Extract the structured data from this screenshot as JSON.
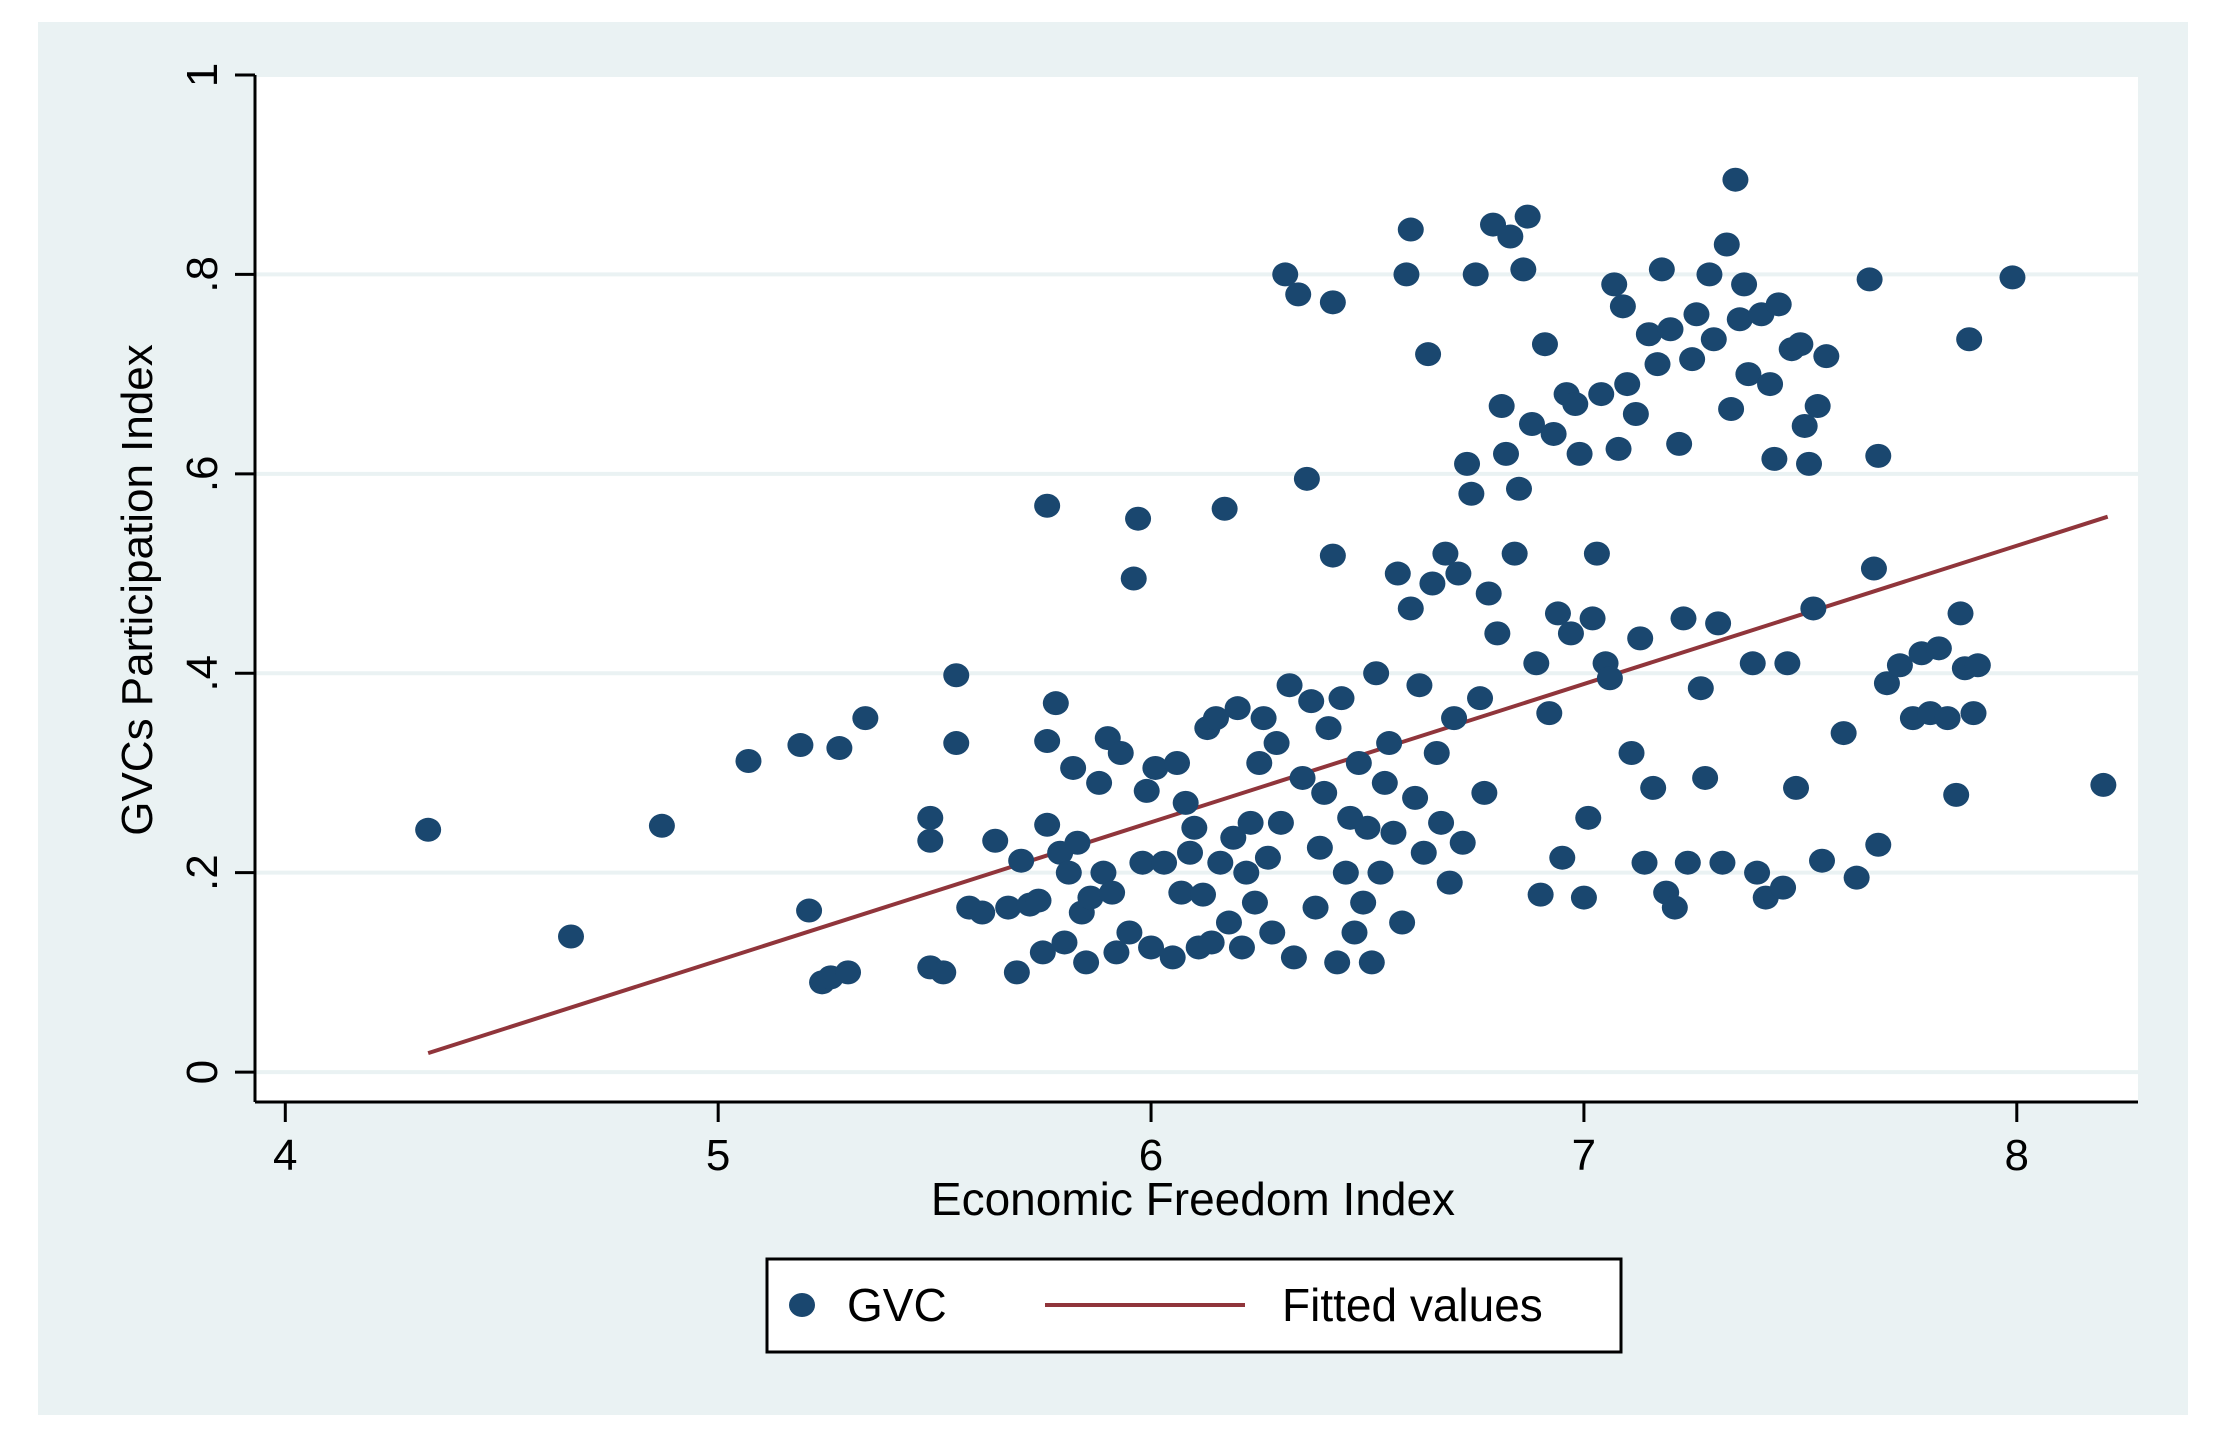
{
  "colors": {
    "outer_background": "#eaf2f3",
    "plot_background": "#ffffff",
    "marker": "#1a476f",
    "fit_line": "#90353b",
    "grid": "#eaf2f3",
    "axis": "#000000"
  },
  "chart_data": {
    "type": "scatter",
    "title": "",
    "xlabel": "Economic Freedom Index",
    "ylabel": "GVCs Participation Index",
    "xlim": [
      3.93,
      8.28
    ],
    "ylim": [
      -0.03,
      1.0
    ],
    "xticks": [
      4,
      5,
      6,
      7,
      8
    ],
    "xtick_labels": [
      "4",
      "5",
      "6",
      "7",
      "8"
    ],
    "yticks": [
      0,
      0.2,
      0.4,
      0.6,
      0.8,
      1
    ],
    "ytick_labels": [
      "0",
      ".2",
      ".4",
      ".6",
      ".8",
      "1"
    ],
    "grid": true,
    "legend": {
      "placement": "bottom",
      "entries": [
        "GVC",
        "Fitted values"
      ]
    },
    "series": [
      {
        "name": "GVC",
        "kind": "scatter",
        "points": [
          [
            4.33,
            0.243
          ],
          [
            4.66,
            0.136
          ],
          [
            4.87,
            0.247
          ],
          [
            5.07,
            0.312
          ],
          [
            5.19,
            0.328
          ],
          [
            5.21,
            0.162
          ],
          [
            5.24,
            0.09
          ],
          [
            5.26,
            0.095
          ],
          [
            5.28,
            0.325
          ],
          [
            5.3,
            0.1
          ],
          [
            5.34,
            0.355
          ],
          [
            5.49,
            0.255
          ],
          [
            5.49,
            0.232
          ],
          [
            5.49,
            0.105
          ],
          [
            5.52,
            0.1
          ],
          [
            5.55,
            0.398
          ],
          [
            5.55,
            0.33
          ],
          [
            5.58,
            0.165
          ],
          [
            5.61,
            0.16
          ],
          [
            5.64,
            0.232
          ],
          [
            5.67,
            0.165
          ],
          [
            5.69,
            0.1
          ],
          [
            5.7,
            0.212
          ],
          [
            5.72,
            0.168
          ],
          [
            5.74,
            0.172
          ],
          [
            5.75,
            0.12
          ],
          [
            5.76,
            0.248
          ],
          [
            5.76,
            0.568
          ],
          [
            5.76,
            0.332
          ],
          [
            5.78,
            0.37
          ],
          [
            5.79,
            0.22
          ],
          [
            5.8,
            0.13
          ],
          [
            5.81,
            0.2
          ],
          [
            5.82,
            0.305
          ],
          [
            5.83,
            0.23
          ],
          [
            5.84,
            0.16
          ],
          [
            5.85,
            0.11
          ],
          [
            5.86,
            0.175
          ],
          [
            5.88,
            0.29
          ],
          [
            5.89,
            0.2
          ],
          [
            5.9,
            0.335
          ],
          [
            5.91,
            0.18
          ],
          [
            5.92,
            0.12
          ],
          [
            5.93,
            0.32
          ],
          [
            5.95,
            0.14
          ],
          [
            5.96,
            0.495
          ],
          [
            5.97,
            0.555
          ],
          [
            5.98,
            0.21
          ],
          [
            5.99,
            0.282
          ],
          [
            6.0,
            0.125
          ],
          [
            6.01,
            0.305
          ],
          [
            6.03,
            0.21
          ],
          [
            6.05,
            0.115
          ],
          [
            6.06,
            0.31
          ],
          [
            6.07,
            0.18
          ],
          [
            6.08,
            0.27
          ],
          [
            6.09,
            0.22
          ],
          [
            6.1,
            0.245
          ],
          [
            6.11,
            0.125
          ],
          [
            6.12,
            0.178
          ],
          [
            6.13,
            0.345
          ],
          [
            6.14,
            0.13
          ],
          [
            6.15,
            0.355
          ],
          [
            6.16,
            0.21
          ],
          [
            6.17,
            0.565
          ],
          [
            6.18,
            0.15
          ],
          [
            6.19,
            0.235
          ],
          [
            6.2,
            0.365
          ],
          [
            6.21,
            0.125
          ],
          [
            6.22,
            0.2
          ],
          [
            6.23,
            0.25
          ],
          [
            6.24,
            0.17
          ],
          [
            6.25,
            0.31
          ],
          [
            6.26,
            0.355
          ],
          [
            6.27,
            0.215
          ],
          [
            6.28,
            0.14
          ],
          [
            6.29,
            0.33
          ],
          [
            6.3,
            0.25
          ],
          [
            6.31,
            0.8
          ],
          [
            6.32,
            0.388
          ],
          [
            6.33,
            0.115
          ],
          [
            6.34,
            0.78
          ],
          [
            6.35,
            0.295
          ],
          [
            6.36,
            0.595
          ],
          [
            6.37,
            0.372
          ],
          [
            6.38,
            0.165
          ],
          [
            6.39,
            0.225
          ],
          [
            6.4,
            0.28
          ],
          [
            6.41,
            0.345
          ],
          [
            6.42,
            0.772
          ],
          [
            6.42,
            0.518
          ],
          [
            6.43,
            0.11
          ],
          [
            6.44,
            0.375
          ],
          [
            6.45,
            0.2
          ],
          [
            6.46,
            0.255
          ],
          [
            6.47,
            0.14
          ],
          [
            6.48,
            0.31
          ],
          [
            6.49,
            0.17
          ],
          [
            6.5,
            0.245
          ],
          [
            6.51,
            0.11
          ],
          [
            6.52,
            0.4
          ],
          [
            6.53,
            0.2
          ],
          [
            6.54,
            0.29
          ],
          [
            6.55,
            0.33
          ],
          [
            6.56,
            0.24
          ],
          [
            6.57,
            0.5
          ],
          [
            6.58,
            0.15
          ],
          [
            6.59,
            0.8
          ],
          [
            6.6,
            0.845
          ],
          [
            6.6,
            0.465
          ],
          [
            6.61,
            0.275
          ],
          [
            6.62,
            0.388
          ],
          [
            6.63,
            0.22
          ],
          [
            6.64,
            0.72
          ],
          [
            6.65,
            0.49
          ],
          [
            6.66,
            0.32
          ],
          [
            6.67,
            0.25
          ],
          [
            6.68,
            0.52
          ],
          [
            6.69,
            0.19
          ],
          [
            6.7,
            0.355
          ],
          [
            6.71,
            0.5
          ],
          [
            6.72,
            0.23
          ],
          [
            6.73,
            0.61
          ],
          [
            6.74,
            0.58
          ],
          [
            6.75,
            0.8
          ],
          [
            6.76,
            0.375
          ],
          [
            6.77,
            0.28
          ],
          [
            6.78,
            0.48
          ],
          [
            6.79,
            0.85
          ],
          [
            6.8,
            0.44
          ],
          [
            6.81,
            0.668
          ],
          [
            6.82,
            0.62
          ],
          [
            6.83,
            0.838
          ],
          [
            6.84,
            0.52
          ],
          [
            6.85,
            0.585
          ],
          [
            6.86,
            0.805
          ],
          [
            6.87,
            0.858
          ],
          [
            6.88,
            0.65
          ],
          [
            6.89,
            0.41
          ],
          [
            6.9,
            0.178
          ],
          [
            6.91,
            0.73
          ],
          [
            6.92,
            0.36
          ],
          [
            6.93,
            0.64
          ],
          [
            6.94,
            0.46
          ],
          [
            6.95,
            0.215
          ],
          [
            6.96,
            0.68
          ],
          [
            6.97,
            0.44
          ],
          [
            6.98,
            0.67
          ],
          [
            6.99,
            0.62
          ],
          [
            7.0,
            0.175
          ],
          [
            7.01,
            0.255
          ],
          [
            7.02,
            0.455
          ],
          [
            7.03,
            0.52
          ],
          [
            7.04,
            0.68
          ],
          [
            7.05,
            0.41
          ],
          [
            7.06,
            0.395
          ],
          [
            7.07,
            0.79
          ],
          [
            7.08,
            0.625
          ],
          [
            7.09,
            0.768
          ],
          [
            7.1,
            0.69
          ],
          [
            7.11,
            0.32
          ],
          [
            7.12,
            0.66
          ],
          [
            7.13,
            0.435
          ],
          [
            7.14,
            0.21
          ],
          [
            7.15,
            0.74
          ],
          [
            7.16,
            0.285
          ],
          [
            7.17,
            0.71
          ],
          [
            7.18,
            0.805
          ],
          [
            7.19,
            0.18
          ],
          [
            7.2,
            0.745
          ],
          [
            7.21,
            0.165
          ],
          [
            7.22,
            0.63
          ],
          [
            7.23,
            0.455
          ],
          [
            7.24,
            0.21
          ],
          [
            7.25,
            0.715
          ],
          [
            7.26,
            0.76
          ],
          [
            7.27,
            0.385
          ],
          [
            7.28,
            0.295
          ],
          [
            7.29,
            0.8
          ],
          [
            7.3,
            0.735
          ],
          [
            7.31,
            0.45
          ],
          [
            7.32,
            0.21
          ],
          [
            7.33,
            0.83
          ],
          [
            7.34,
            0.665
          ],
          [
            7.35,
            0.895
          ],
          [
            7.36,
            0.755
          ],
          [
            7.37,
            0.79
          ],
          [
            7.38,
            0.7
          ],
          [
            7.39,
            0.41
          ],
          [
            7.4,
            0.2
          ],
          [
            7.41,
            0.76
          ],
          [
            7.42,
            0.175
          ],
          [
            7.43,
            0.69
          ],
          [
            7.44,
            0.615
          ],
          [
            7.45,
            0.77
          ],
          [
            7.46,
            0.185
          ],
          [
            7.47,
            0.41
          ],
          [
            7.48,
            0.725
          ],
          [
            7.49,
            0.285
          ],
          [
            7.5,
            0.73
          ],
          [
            7.51,
            0.648
          ],
          [
            7.52,
            0.61
          ],
          [
            7.53,
            0.465
          ],
          [
            7.54,
            0.668
          ],
          [
            7.55,
            0.212
          ],
          [
            7.56,
            0.718
          ],
          [
            7.6,
            0.34
          ],
          [
            7.63,
            0.195
          ],
          [
            7.66,
            0.795
          ],
          [
            7.67,
            0.505
          ],
          [
            7.68,
            0.618
          ],
          [
            7.68,
            0.228
          ],
          [
            7.7,
            0.39
          ],
          [
            7.73,
            0.408
          ],
          [
            7.76,
            0.355
          ],
          [
            7.78,
            0.42
          ],
          [
            7.8,
            0.36
          ],
          [
            7.82,
            0.425
          ],
          [
            7.84,
            0.355
          ],
          [
            7.86,
            0.278
          ],
          [
            7.87,
            0.46
          ],
          [
            7.88,
            0.405
          ],
          [
            7.89,
            0.735
          ],
          [
            7.9,
            0.36
          ],
          [
            7.91,
            0.408
          ],
          [
            7.99,
            0.797
          ],
          [
            8.2,
            0.288
          ]
        ]
      },
      {
        "name": "Fitted values",
        "kind": "line",
        "x": [
          4.33,
          8.21
        ],
        "y": [
          0.019,
          0.557
        ]
      }
    ]
  }
}
